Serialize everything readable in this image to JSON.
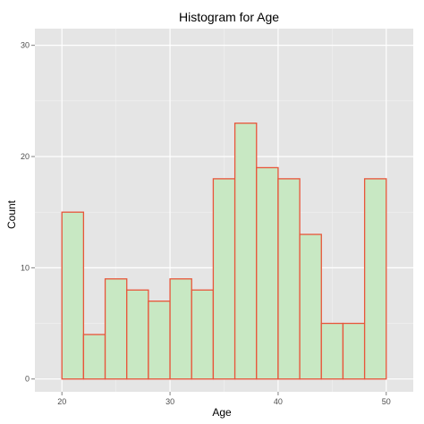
{
  "chart_data": {
    "type": "bar",
    "title": "Histogram for Age",
    "xlabel": "Age",
    "ylabel": "Count",
    "xlim": [
      17.5,
      52.5
    ],
    "ylim": [
      -1.15,
      31.5
    ],
    "bin_width": 2,
    "bins": [
      {
        "start": 20,
        "end": 22,
        "count": 15
      },
      {
        "start": 22,
        "end": 24,
        "count": 4
      },
      {
        "start": 24,
        "end": 26,
        "count": 9
      },
      {
        "start": 26,
        "end": 28,
        "count": 8
      },
      {
        "start": 28,
        "end": 30,
        "count": 7
      },
      {
        "start": 30,
        "end": 32,
        "count": 9
      },
      {
        "start": 32,
        "end": 34,
        "count": 8
      },
      {
        "start": 34,
        "end": 36,
        "count": 18
      },
      {
        "start": 36,
        "end": 38,
        "count": 23
      },
      {
        "start": 38,
        "end": 40,
        "count": 19
      },
      {
        "start": 40,
        "end": 42,
        "count": 18
      },
      {
        "start": 42,
        "end": 44,
        "count": 13
      },
      {
        "start": 44,
        "end": 46,
        "count": 5
      },
      {
        "start": 46,
        "end": 48,
        "count": 5
      },
      {
        "start": 48,
        "end": 50,
        "count": 18
      }
    ],
    "x_ticks": [
      20,
      30,
      40,
      50
    ],
    "x_tick_labels": [
      "20",
      "30",
      "40",
      "50"
    ],
    "y_ticks": [
      0,
      10,
      20,
      30
    ],
    "y_tick_labels": [
      "0",
      "10",
      "20",
      "30"
    ],
    "grid": true,
    "colors": {
      "panel_background": "#e5e5e5",
      "grid_major": "#ffffff",
      "grid_minor": "#f2f2f2",
      "bar_fill": "#c8e8c3",
      "bar_stroke": "#e8553a"
    }
  }
}
